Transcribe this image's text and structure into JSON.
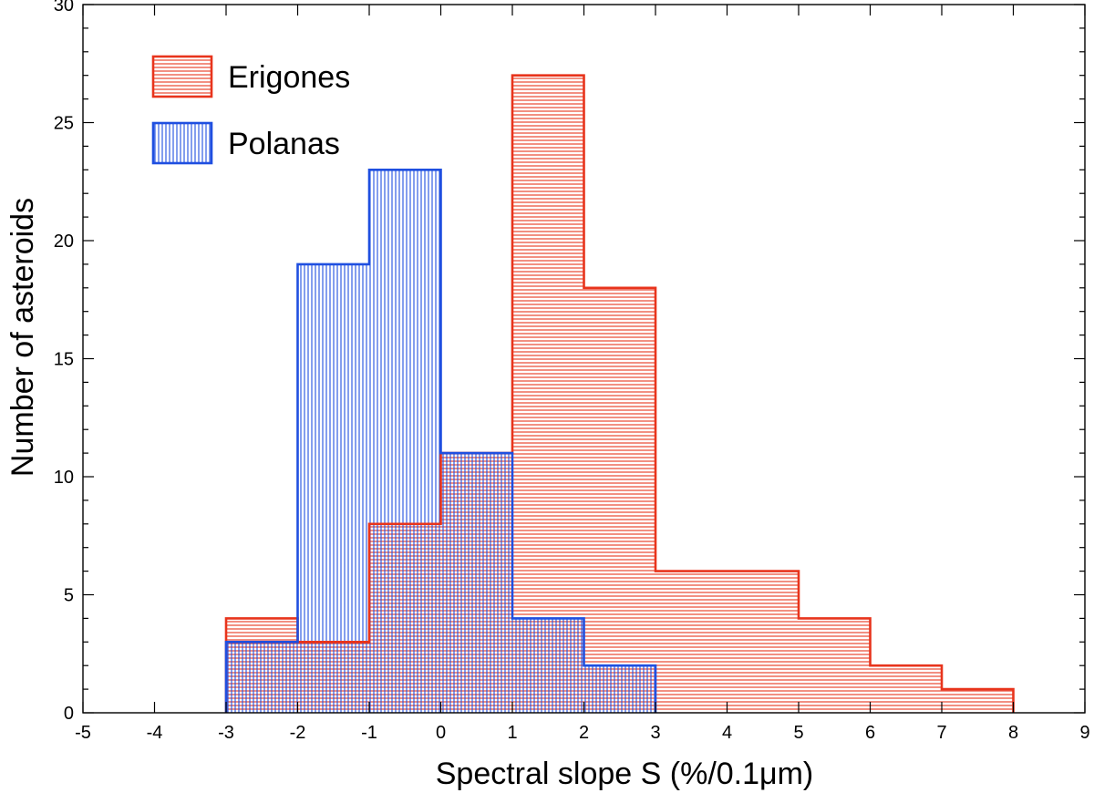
{
  "chart_data": {
    "type": "bar",
    "xlabel": "Spectral slope S (%/0.1μm)",
    "ylabel": "Number of asteroids",
    "xlim": [
      -5,
      9
    ],
    "ylim": [
      0,
      30
    ],
    "x_ticks": [
      -5,
      -4,
      -3,
      -2,
      -1,
      0,
      1,
      2,
      3,
      4,
      5,
      6,
      7,
      8,
      9
    ],
    "y_ticks": [
      0,
      5,
      10,
      15,
      20,
      25,
      30
    ],
    "bin_width": 1,
    "legend_position": "top-left",
    "series": [
      {
        "name": "Erigones",
        "color": "#e8341c",
        "hatch": "horizontal",
        "bins": [
          -3,
          -2,
          -1,
          0,
          1,
          2,
          3,
          4,
          5,
          6,
          7
        ],
        "values": [
          4,
          3,
          8,
          11,
          27,
          18,
          6,
          6,
          4,
          2,
          1
        ]
      },
      {
        "name": "Polanas",
        "color": "#1f4fe0",
        "hatch": "vertical",
        "bins": [
          -3,
          -2,
          -1,
          0,
          1,
          2
        ],
        "values": [
          3,
          19,
          23,
          11,
          4,
          2
        ]
      }
    ]
  }
}
